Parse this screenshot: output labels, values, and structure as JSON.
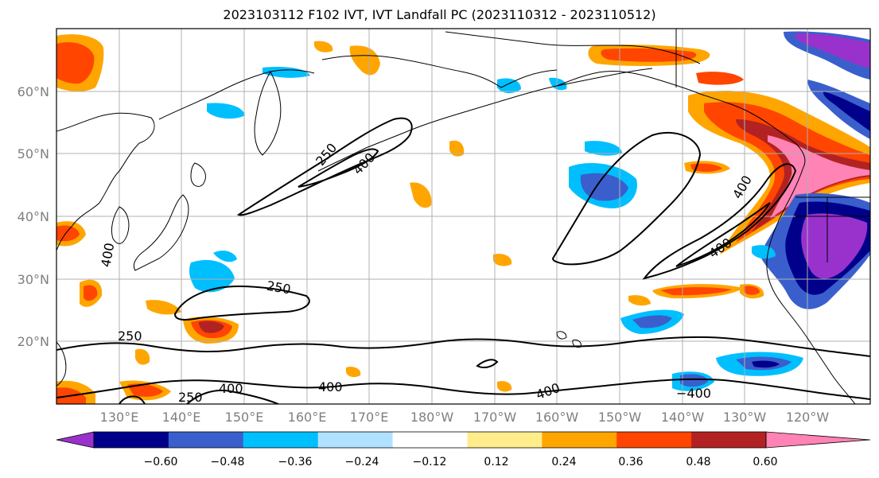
{
  "title": "2023103112 F102 IVT, IVT Landfall PC (2023110312 - 2023110512)",
  "lat_labels": [
    "60°N",
    "50°N",
    "40°N",
    "30°N",
    "20°N"
  ],
  "lon_labels": [
    "130°E",
    "140°E",
    "150°E",
    "160°E",
    "170°E",
    "180°W",
    "170°W",
    "160°W",
    "150°W",
    "140°W",
    "130°W",
    "120°W"
  ],
  "colorbar": {
    "colors": [
      "#9932cc",
      "#00008b",
      "#3a5fcd",
      "#00bfff",
      "#b0e2ff",
      "#ffffff",
      "#ffec8b",
      "#ffa500",
      "#ff4500",
      "#b22222",
      "#ff83b4"
    ],
    "tick_labels": [
      "−0.60",
      "−0.48",
      "−0.36",
      "−0.24",
      "−0.12",
      "0.12",
      "0.24",
      "0.36",
      "0.48",
      "0.60"
    ]
  },
  "contour_labels": [
    "250",
    "400",
    "400",
    "250",
    "250",
    "250",
    "400",
    "400",
    "400",
    "400",
    "400",
    "−400"
  ]
}
